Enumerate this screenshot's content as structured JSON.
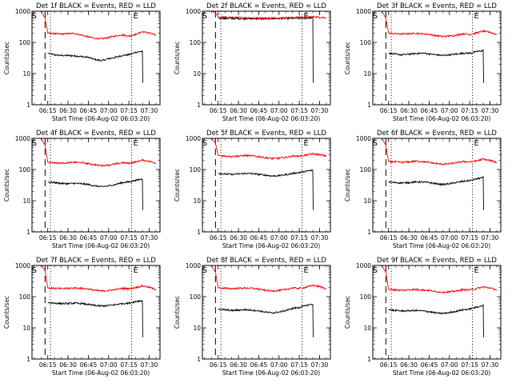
{
  "figure": {
    "ylabel": "Counts/sec",
    "xlabel": "Start Time (06-Aug-02 06:03:20)",
    "x_tick_labels": [
      "06:15",
      "06:30",
      "06:45",
      "07:00",
      "07:15",
      "07:30"
    ],
    "y_tick_labels": [
      "1",
      "10",
      "100",
      "1000"
    ],
    "marker_start": "S",
    "marker_end": "E",
    "colors": {
      "events": "#000000",
      "lld": "#ff0000",
      "axes": "#000000",
      "background": "#ffffff"
    }
  },
  "chart_data": [
    {
      "type": "line",
      "title": "Det 1f BLACK = Events, RED = LLD",
      "ylabel": "Counts/sec",
      "xlabel": "Start Time (06-Aug-02 06:03:20)",
      "yscale": "log",
      "ylim": [
        1,
        1000
      ],
      "xlim": [
        "06:03:20",
        "07:38:00"
      ],
      "x": [
        "06:10",
        "06:13",
        "06:15",
        "06:20",
        "06:25",
        "06:30",
        "06:35",
        "06:40",
        "06:45",
        "06:50",
        "06:55",
        "07:00",
        "07:05",
        "07:10",
        "07:15",
        "07:20",
        "07:25",
        "07:30",
        "07:35"
      ],
      "series": [
        {
          "name": "Events",
          "values": [
            null,
            null,
            45,
            40,
            38,
            38,
            37,
            35,
            33,
            28,
            26,
            30,
            33,
            38,
            40,
            48,
            52,
            null,
            null
          ]
        },
        {
          "name": "LLD",
          "values": [
            1000,
            600,
            200,
            190,
            185,
            190,
            195,
            170,
            150,
            135,
            130,
            145,
            160,
            175,
            160,
            180,
            220,
            200,
            170
          ]
        }
      ],
      "dashed_vline": "06:13",
      "dotted_vlines": [
        "06:17",
        "07:17"
      ]
    },
    {
      "type": "line",
      "title": "Det 2f BLACK = Events, RED = LLD",
      "ylabel": "Counts/sec",
      "xlabel": "Start Time (06-Aug-02 06:03:20)",
      "yscale": "log",
      "ylim": [
        1,
        1000
      ],
      "xlim": [
        "06:03:20",
        "07:38:00"
      ],
      "x": [
        "06:10",
        "06:13",
        "06:15",
        "06:20",
        "06:25",
        "06:30",
        "06:35",
        "06:40",
        "06:45",
        "06:50",
        "06:55",
        "07:00",
        "07:05",
        "07:10",
        "07:15",
        "07:20",
        "07:25",
        "07:30",
        "07:35"
      ],
      "series": [
        {
          "name": "Events",
          "values": [
            null,
            null,
            600,
            590,
            585,
            580,
            580,
            575,
            575,
            570,
            575,
            580,
            585,
            590,
            590,
            600,
            620,
            null,
            null
          ]
        },
        {
          "name": "LLD",
          "values": [
            1000,
            900,
            650,
            640,
            630,
            620,
            620,
            610,
            605,
            600,
            605,
            610,
            620,
            630,
            640,
            650,
            660,
            640,
            620
          ]
        }
      ],
      "dashed_vline": "06:13",
      "dotted_vlines": [
        "06:17",
        "07:17"
      ]
    },
    {
      "type": "line",
      "title": "Det 3f BLACK = Events, RED = LLD",
      "ylabel": "Counts/sec",
      "xlabel": "Start Time (06-Aug-02 06:03:20)",
      "yscale": "log",
      "ylim": [
        1,
        1000
      ],
      "xlim": [
        "06:03:20",
        "07:38:00"
      ],
      "x": [
        "06:10",
        "06:13",
        "06:15",
        "06:20",
        "06:25",
        "06:30",
        "06:35",
        "06:40",
        "06:45",
        "06:50",
        "06:55",
        "07:00",
        "07:05",
        "07:10",
        "07:15",
        "07:20",
        "07:25",
        "07:30",
        "07:35"
      ],
      "series": [
        {
          "name": "Events",
          "values": [
            null,
            null,
            45,
            42,
            40,
            42,
            44,
            45,
            43,
            40,
            38,
            40,
            42,
            45,
            45,
            50,
            55,
            null,
            null
          ]
        },
        {
          "name": "LLD",
          "values": [
            1000,
            600,
            200,
            190,
            185,
            190,
            195,
            190,
            180,
            165,
            155,
            160,
            170,
            190,
            180,
            200,
            230,
            210,
            180
          ]
        }
      ],
      "dashed_vline": "06:13",
      "dotted_vlines": [
        "06:17",
        "07:17"
      ]
    },
    {
      "type": "line",
      "title": "Det 4f BLACK = Events, RED = LLD",
      "ylabel": "Counts/sec",
      "xlabel": "Start Time (06-Aug-02 06:03:20)",
      "yscale": "log",
      "ylim": [
        1,
        1000
      ],
      "xlim": [
        "06:03:20",
        "07:38:00"
      ],
      "x": [
        "06:10",
        "06:13",
        "06:15",
        "06:20",
        "06:25",
        "06:30",
        "06:35",
        "06:40",
        "06:45",
        "06:50",
        "06:55",
        "07:00",
        "07:05",
        "07:10",
        "07:15",
        "07:20",
        "07:25",
        "07:30",
        "07:35"
      ],
      "series": [
        {
          "name": "Events",
          "values": [
            null,
            null,
            40,
            38,
            36,
            35,
            36,
            35,
            33,
            30,
            28,
            30,
            33,
            38,
            40,
            45,
            50,
            null,
            null
          ]
        },
        {
          "name": "LLD",
          "values": [
            1000,
            600,
            170,
            165,
            160,
            165,
            170,
            165,
            155,
            140,
            135,
            140,
            150,
            165,
            160,
            175,
            200,
            185,
            160
          ]
        }
      ],
      "dashed_vline": "06:13",
      "dotted_vlines": [
        "06:17",
        "07:17"
      ]
    },
    {
      "type": "line",
      "title": "Det 5f BLACK = Events, RED = LLD",
      "ylabel": "Counts/sec",
      "xlabel": "Start Time (06-Aug-02 06:03:20)",
      "yscale": "log",
      "ylim": [
        1,
        1000
      ],
      "xlim": [
        "06:03:20",
        "07:38:00"
      ],
      "x": [
        "06:10",
        "06:13",
        "06:15",
        "06:20",
        "06:25",
        "06:30",
        "06:35",
        "06:40",
        "06:45",
        "06:50",
        "06:55",
        "07:00",
        "07:05",
        "07:10",
        "07:15",
        "07:20",
        "07:25",
        "07:30",
        "07:35"
      ],
      "series": [
        {
          "name": "Events",
          "values": [
            null,
            null,
            75,
            72,
            70,
            72,
            75,
            74,
            70,
            66,
            62,
            64,
            68,
            75,
            80,
            88,
            95,
            null,
            null
          ]
        },
        {
          "name": "LLD",
          "values": [
            1000,
            700,
            280,
            270,
            265,
            270,
            280,
            275,
            260,
            240,
            225,
            230,
            245,
            270,
            270,
            290,
            320,
            300,
            270
          ]
        }
      ],
      "dashed_vline": "06:13",
      "dotted_vlines": [
        "06:17",
        "07:17"
      ]
    },
    {
      "type": "line",
      "title": "Det 6f BLACK = Events, RED = LLD",
      "ylabel": "Counts/sec",
      "xlabel": "Start Time (06-Aug-02 06:03:20)",
      "yscale": "log",
      "ylim": [
        1,
        1000
      ],
      "xlim": [
        "06:03:20",
        "07:38:00"
      ],
      "x": [
        "06:10",
        "06:13",
        "06:15",
        "06:20",
        "06:25",
        "06:30",
        "06:35",
        "06:40",
        "06:45",
        "06:50",
        "06:55",
        "07:00",
        "07:05",
        "07:10",
        "07:15",
        "07:20",
        "07:25",
        "07:30",
        "07:35"
      ],
      "series": [
        {
          "name": "Events",
          "values": [
            null,
            null,
            40,
            38,
            37,
            38,
            40,
            40,
            38,
            35,
            33,
            35,
            38,
            42,
            44,
            50,
            55,
            null,
            null
          ]
        },
        {
          "name": "LLD",
          "values": [
            1000,
            600,
            180,
            175,
            170,
            175,
            185,
            180,
            170,
            155,
            148,
            152,
            165,
            180,
            175,
            190,
            215,
            195,
            170
          ]
        }
      ],
      "dashed_vline": "06:13",
      "dotted_vlines": [
        "06:17",
        "07:17"
      ]
    },
    {
      "type": "line",
      "title": "Det 7f BLACK = Events, RED = LLD",
      "ylabel": "Counts/sec",
      "xlabel": "Start Time (06-Aug-02 06:03:20)",
      "yscale": "log",
      "ylim": [
        1,
        1000
      ],
      "xlim": [
        "06:03:20",
        "07:38:00"
      ],
      "x": [
        "06:10",
        "06:13",
        "06:15",
        "06:20",
        "06:25",
        "06:30",
        "06:35",
        "06:40",
        "06:45",
        "06:50",
        "06:55",
        "07:00",
        "07:05",
        "07:10",
        "07:15",
        "07:20",
        "07:25",
        "07:30",
        "07:35"
      ],
      "series": [
        {
          "name": "Events",
          "values": [
            null,
            null,
            65,
            62,
            60,
            60,
            62,
            60,
            56,
            52,
            50,
            52,
            55,
            60,
            62,
            70,
            75,
            null,
            null
          ]
        },
        {
          "name": "LLD",
          "values": [
            1000,
            700,
            190,
            185,
            180,
            185,
            190,
            185,
            175,
            160,
            152,
            158,
            168,
            185,
            180,
            195,
            220,
            200,
            170
          ]
        }
      ],
      "dashed_vline": "06:13",
      "dotted_vlines": [
        "06:17",
        "07:17"
      ]
    },
    {
      "type": "line",
      "title": "Det 8f BLACK = Events, RED = LLD",
      "ylabel": "Counts/sec",
      "xlabel": "Start Time (06-Aug-02 06:03:20)",
      "yscale": "log",
      "ylim": [
        1,
        1000
      ],
      "xlim": [
        "06:03:20",
        "07:38:00"
      ],
      "x": [
        "06:10",
        "06:13",
        "06:15",
        "06:20",
        "06:25",
        "06:30",
        "06:35",
        "06:40",
        "06:45",
        "06:50",
        "06:55",
        "07:00",
        "07:05",
        "07:10",
        "07:15",
        "07:20",
        "07:25",
        "07:30",
        "07:35"
      ],
      "series": [
        {
          "name": "Events",
          "values": [
            null,
            null,
            40,
            38,
            36,
            37,
            38,
            37,
            35,
            32,
            30,
            32,
            36,
            42,
            45,
            52,
            58,
            null,
            null
          ]
        },
        {
          "name": "LLD",
          "values": [
            1000,
            600,
            190,
            185,
            180,
            185,
            190,
            185,
            175,
            160,
            152,
            158,
            170,
            190,
            185,
            200,
            230,
            210,
            180
          ]
        }
      ],
      "dashed_vline": "06:13",
      "dotted_vlines": [
        "06:17",
        "07:17"
      ]
    },
    {
      "type": "line",
      "title": "Det 9f BLACK = Events, RED = LLD",
      "ylabel": "Counts/sec",
      "xlabel": "Start Time (06-Aug-02 06:03:20)",
      "yscale": "log",
      "ylim": [
        1,
        1000
      ],
      "xlim": [
        "06:03:20",
        "07:38:00"
      ],
      "x": [
        "06:10",
        "06:13",
        "06:15",
        "06:20",
        "06:25",
        "06:30",
        "06:35",
        "06:40",
        "06:45",
        "06:50",
        "06:55",
        "07:00",
        "07:05",
        "07:10",
        "07:15",
        "07:20",
        "07:25",
        "07:30",
        "07:35"
      ],
      "series": [
        {
          "name": "Events",
          "values": [
            null,
            null,
            38,
            36,
            35,
            35,
            36,
            35,
            33,
            30,
            29,
            31,
            34,
            38,
            40,
            46,
            52,
            null,
            null
          ]
        },
        {
          "name": "LLD",
          "values": [
            1000,
            600,
            170,
            165,
            160,
            165,
            170,
            165,
            158,
            145,
            138,
            142,
            152,
            168,
            165,
            180,
            205,
            190,
            165
          ]
        }
      ],
      "dashed_vline": "06:13",
      "dotted_vlines": [
        "06:17",
        "07:17"
      ]
    }
  ]
}
